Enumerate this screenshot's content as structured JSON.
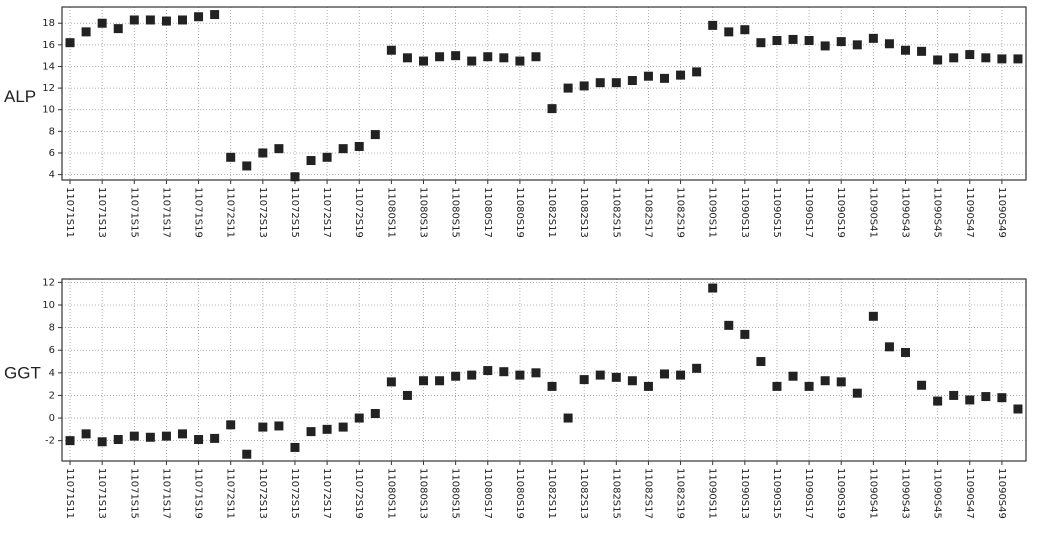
{
  "chart_data": [
    {
      "type": "scatter",
      "ylabel": "ALP",
      "color": "#222222",
      "grid": true,
      "categories": [
        "11071S11",
        null,
        "11071S13",
        null,
        "11071S15",
        null,
        "11071S17",
        null,
        "11071S19",
        null,
        "11072S11",
        null,
        "11072S13",
        null,
        "11072S15",
        null,
        "11072S17",
        null,
        "11072S19",
        null,
        "11080S11",
        null,
        "11080S13",
        null,
        "11080S15",
        null,
        "11080S17",
        null,
        "11080S19",
        null,
        "11082S11",
        null,
        "11082S13",
        null,
        "11082S15",
        null,
        "11082S17",
        null,
        "11082S19",
        null,
        "11090S11",
        null,
        "11090S13",
        null,
        "11090S15",
        null,
        "11090S17",
        null,
        "11090S19",
        null,
        "11090S41",
        null,
        "11090S43",
        null,
        "11090S45",
        null,
        "11090S47",
        null,
        "11090S49",
        null
      ],
      "values": [
        16.2,
        17.2,
        18.0,
        17.5,
        18.3,
        18.3,
        18.2,
        18.3,
        18.6,
        18.8,
        5.6,
        4.8,
        6.0,
        6.4,
        3.8,
        5.3,
        5.6,
        6.4,
        6.6,
        7.7,
        15.5,
        14.8,
        14.5,
        14.9,
        15.0,
        14.5,
        14.9,
        14.8,
        14.5,
        14.9,
        10.1,
        12.0,
        12.2,
        12.5,
        12.5,
        12.7,
        13.1,
        12.9,
        13.2,
        13.5,
        17.8,
        17.2,
        17.4,
        16.2,
        16.4,
        16.5,
        16.4,
        15.9,
        16.3,
        16.0,
        16.6,
        16.1,
        15.5,
        15.4,
        14.6,
        14.8,
        15.1,
        14.8,
        14.7,
        14.7
      ],
      "ylim": [
        3.5,
        19.5
      ],
      "yticks": [
        4,
        6,
        8,
        10,
        12,
        14,
        16,
        18
      ]
    },
    {
      "type": "scatter",
      "ylabel": "GGT",
      "color": "#222222",
      "grid": true,
      "categories": [
        "11071S11",
        null,
        "11071S13",
        null,
        "11071S15",
        null,
        "11071S17",
        null,
        "11071S19",
        null,
        "11072S11",
        null,
        "11072S13",
        null,
        "11072S15",
        null,
        "11072S17",
        null,
        "11072S19",
        null,
        "11080S11",
        null,
        "11080S13",
        null,
        "11080S15",
        null,
        "11080S17",
        null,
        "11080S19",
        null,
        "11082S11",
        null,
        "11082S13",
        null,
        "11082S15",
        null,
        "11082S17",
        null,
        "11082S19",
        null,
        "11090S11",
        null,
        "11090S13",
        null,
        "11090S15",
        null,
        "11090S17",
        null,
        "11090S19",
        null,
        "11090S41",
        null,
        "11090S43",
        null,
        "11090S45",
        null,
        "11090S47",
        null,
        "11090S49",
        null
      ],
      "values": [
        -2.0,
        -1.4,
        -2.1,
        -1.9,
        -1.6,
        -1.7,
        -1.6,
        -1.4,
        -1.9,
        -1.8,
        -0.6,
        -3.2,
        -0.8,
        -0.7,
        -2.6,
        -1.2,
        -1.0,
        -0.8,
        0.0,
        0.4,
        3.2,
        2.0,
        3.3,
        3.3,
        3.7,
        3.8,
        4.2,
        4.1,
        3.8,
        4.0,
        2.8,
        0.0,
        3.4,
        3.8,
        3.6,
        3.3,
        2.8,
        3.9,
        3.8,
        4.4,
        11.5,
        8.2,
        7.4,
        5.0,
        2.8,
        3.7,
        2.8,
        3.3,
        3.2,
        2.2,
        9.0,
        6.3,
        5.8,
        2.9,
        1.5,
        2.0,
        1.6,
        1.9,
        1.8,
        0.8
      ],
      "ylim": [
        -3.8,
        12.3
      ],
      "yticks": [
        -2,
        0,
        2,
        4,
        6,
        8,
        10,
        12
      ]
    }
  ]
}
